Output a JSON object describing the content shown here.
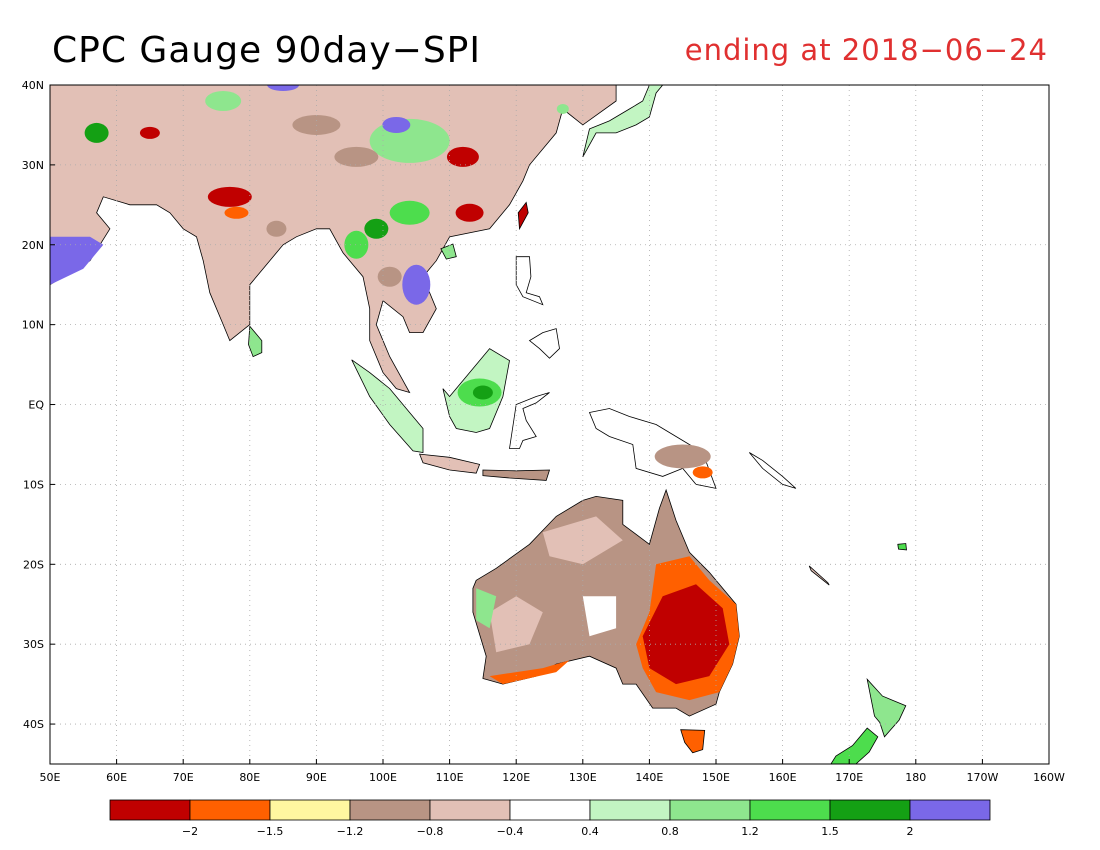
{
  "title": "CPC Gauge 90day−SPI",
  "subtitle": "ending at 2018−06−24",
  "map": {
    "lat_range": [
      -45,
      40
    ],
    "lon_range": [
      50,
      200
    ],
    "lat_ticks": [
      {
        "lat": 40,
        "label": "40N"
      },
      {
        "lat": 30,
        "label": "30N"
      },
      {
        "lat": 20,
        "label": "20N"
      },
      {
        "lat": 10,
        "label": "10N"
      },
      {
        "lat": 0,
        "label": "EQ"
      },
      {
        "lat": -10,
        "label": "10S"
      },
      {
        "lat": -20,
        "label": "20S"
      },
      {
        "lat": -30,
        "label": "30S"
      },
      {
        "lat": -40,
        "label": "40S"
      }
    ],
    "lon_ticks": [
      {
        "lon": 50,
        "label": "50E"
      },
      {
        "lon": 60,
        "label": "60E"
      },
      {
        "lon": 70,
        "label": "70E"
      },
      {
        "lon": 80,
        "label": "80E"
      },
      {
        "lon": 90,
        "label": "90E"
      },
      {
        "lon": 100,
        "label": "100E"
      },
      {
        "lon": 110,
        "label": "110E"
      },
      {
        "lon": 120,
        "label": "120E"
      },
      {
        "lon": 130,
        "label": "130E"
      },
      {
        "lon": 140,
        "label": "140E"
      },
      {
        "lon": 150,
        "label": "150E"
      },
      {
        "lon": 160,
        "label": "160E"
      },
      {
        "lon": 170,
        "label": "170E"
      },
      {
        "lon": 180,
        "label": "180"
      },
      {
        "lon": 190,
        "label": "170W"
      },
      {
        "lon": 200,
        "label": "160W"
      }
    ],
    "grid": true
  },
  "colorbar": {
    "colors": [
      "#c00000",
      "#ff6000",
      "#fff7a0",
      "#b89484",
      "#e2c0b6",
      "#ffffff",
      "#c2f5c2",
      "#8ee68e",
      "#4ddd4d",
      "#14a014",
      "#7a68e8"
    ],
    "labels": [
      "−2",
      "−1.5",
      "−1.2",
      "−0.8",
      "−0.4",
      "0.4",
      "0.8",
      "1.2",
      "1.5",
      "2"
    ]
  },
  "colors": {
    "dry_extreme": "#c00000",
    "dry_severe": "#ff6000",
    "near_normal": "#ffffff",
    "wet_extreme": "#7a68e8",
    "subtitle": "#e03030"
  }
}
